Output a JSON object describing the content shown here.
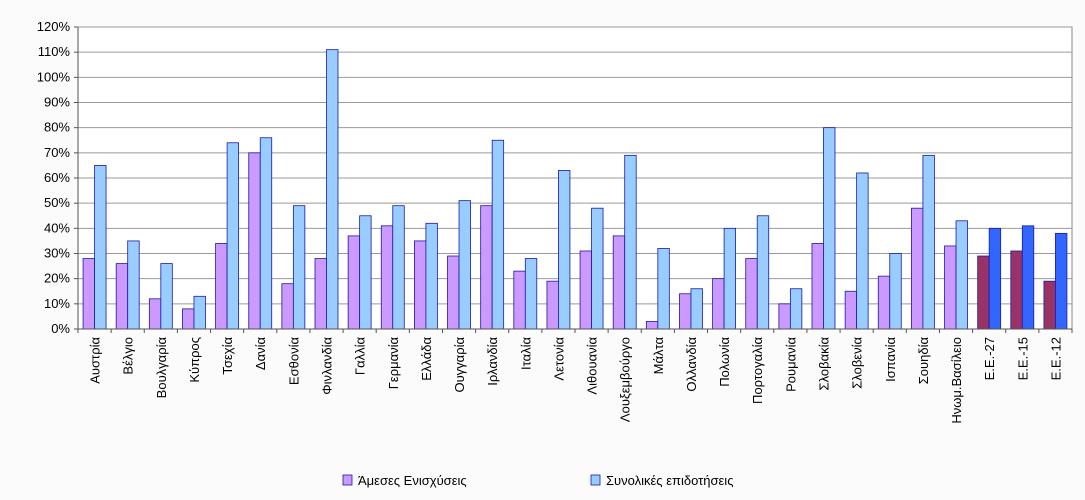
{
  "chart_data": {
    "type": "bar",
    "ylim": [
      0,
      120
    ],
    "yticks": [
      "0%",
      "10%",
      "20%",
      "30%",
      "40%",
      "50%",
      "60%",
      "70%",
      "80%",
      "90%",
      "100%",
      "110%",
      "120%"
    ],
    "grid": true,
    "legend_position": "bottom",
    "categories": [
      "Αυστρία",
      "Βέλγιο",
      "Βουλγαρία",
      "Κύπρος",
      "Τσεχία",
      "Δανία",
      "Εσθονία",
      "Φινλανδία",
      "Γαλλία",
      "Γερμανία",
      "Ελλάδα",
      "Ουγγαρία",
      "Ιρλανδία",
      "Ιταλία",
      "Λετονία",
      "Λιθουανία",
      "Λουξεμβούργο",
      "Μάλτα",
      "Ολλανδία",
      "Πολωνία",
      "Πορτογαλία",
      "Ρουμανία",
      "Σλοβακία",
      "Σλοβενία",
      "Ισπανία",
      "Σουηδία",
      "Ηνωμ.Βασίλειο",
      "Ε.Ε.-27",
      "Ε.Ε.-15",
      "Ε.Ε.-12"
    ],
    "highlight_from_index": 27,
    "series": [
      {
        "name": "Άμεσες Ενισχύσεις",
        "color": "#cc99ff",
        "highlight_color": "#993366",
        "values": [
          28,
          26,
          12,
          8,
          34,
          70,
          18,
          28,
          37,
          41,
          35,
          29,
          49,
          23,
          19,
          31,
          37,
          3,
          14,
          20,
          28,
          10,
          34,
          15,
          21,
          48,
          33,
          29,
          31,
          19
        ]
      },
      {
        "name": "Συνολικές επιδοτήσεις",
        "color": "#99ccff",
        "highlight_color": "#3366ff",
        "values": [
          65,
          35,
          26,
          13,
          74,
          76,
          49,
          111,
          45,
          49,
          42,
          51,
          75,
          28,
          63,
          48,
          69,
          32,
          16,
          40,
          45,
          16,
          80,
          62,
          30,
          69,
          43,
          40,
          41,
          38
        ]
      }
    ]
  }
}
